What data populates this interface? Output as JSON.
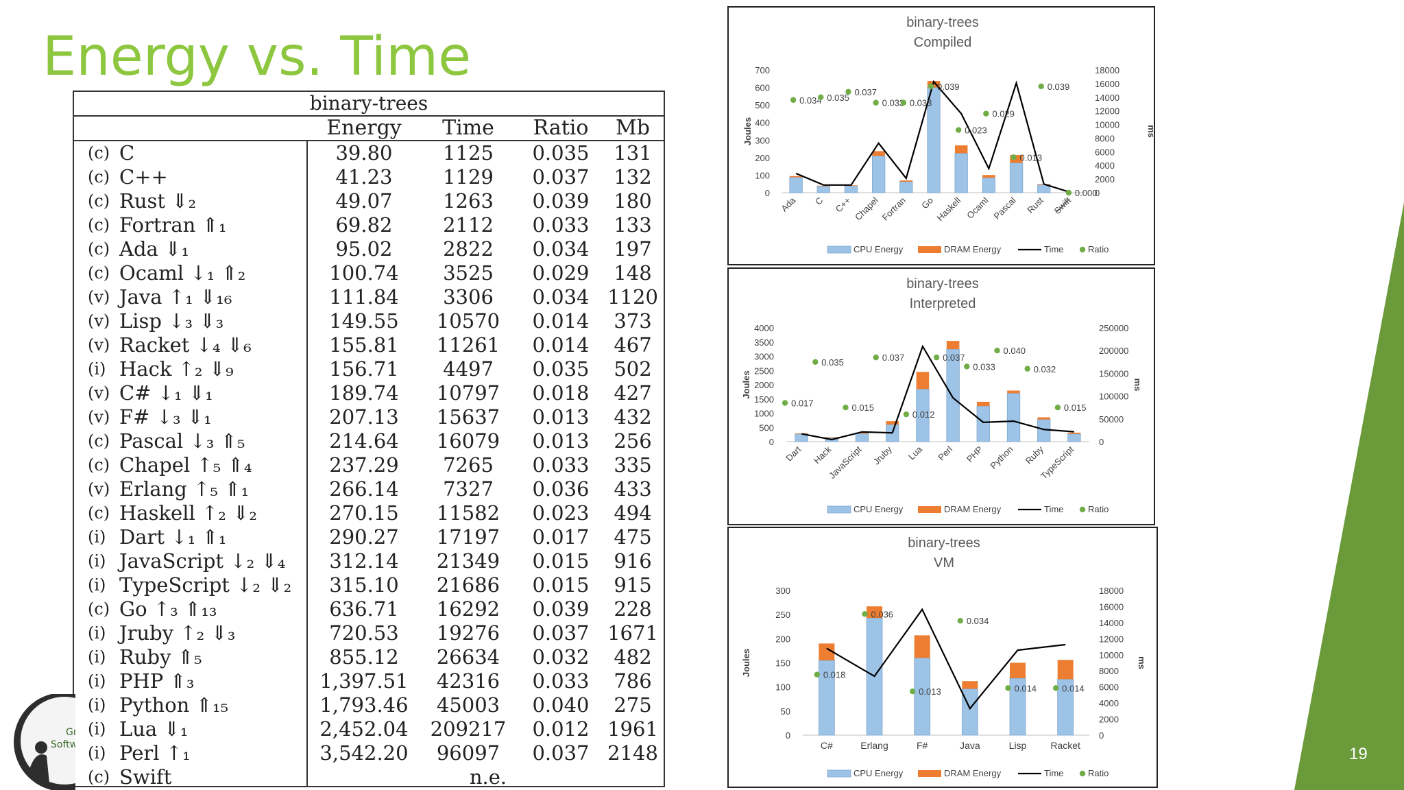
{
  "slide": {
    "title": "Energy vs. Time",
    "page_number": "19",
    "accent_color": "#8dc63f"
  },
  "table": {
    "title": "binary-trees",
    "headers": {
      "energy": "Energy",
      "time": "Time",
      "ratio": "Ratio",
      "mb": "Mb"
    },
    "rows": [
      {
        "type": "(c)",
        "name": "C",
        "energy": "39.80",
        "time": "1125",
        "ratio": "0.035",
        "mb": "131"
      },
      {
        "type": "(c)",
        "name": "C++",
        "energy": "41.23",
        "time": "1129",
        "ratio": "0.037",
        "mb": "132"
      },
      {
        "type": "(c)",
        "name": "Rust ⇓₂",
        "energy": "49.07",
        "time": "1263",
        "ratio": "0.039",
        "mb": "180"
      },
      {
        "type": "(c)",
        "name": "Fortran ⇑₁",
        "energy": "69.82",
        "time": "2112",
        "ratio": "0.033",
        "mb": "133"
      },
      {
        "type": "(c)",
        "name": "Ada ⇓₁",
        "energy": "95.02",
        "time": "2822",
        "ratio": "0.034",
        "mb": "197"
      },
      {
        "type": "(c)",
        "name": "Ocaml ↓₁  ⇑₂",
        "energy": "100.74",
        "time": "3525",
        "ratio": "0.029",
        "mb": "148"
      },
      {
        "type": "(v)",
        "name": "Java ↑₁  ⇓₁₆",
        "energy": "111.84",
        "time": "3306",
        "ratio": "0.034",
        "mb": "1120"
      },
      {
        "type": "(v)",
        "name": "Lisp ↓₃  ⇓₃",
        "energy": "149.55",
        "time": "10570",
        "ratio": "0.014",
        "mb": "373"
      },
      {
        "type": "(v)",
        "name": "Racket ↓₄  ⇓₆",
        "energy": "155.81",
        "time": "11261",
        "ratio": "0.014",
        "mb": "467"
      },
      {
        "type": "(i)",
        "name": "Hack ↑₂  ⇓₉",
        "energy": "156.71",
        "time": "4497",
        "ratio": "0.035",
        "mb": "502"
      },
      {
        "type": "(v)",
        "name": "C# ↓₁  ⇓₁",
        "energy": "189.74",
        "time": "10797",
        "ratio": "0.018",
        "mb": "427"
      },
      {
        "type": "(v)",
        "name": "F# ↓₃  ⇓₁",
        "energy": "207.13",
        "time": "15637",
        "ratio": "0.013",
        "mb": "432"
      },
      {
        "type": "(c)",
        "name": "Pascal ↓₃  ⇑₅",
        "energy": "214.64",
        "time": "16079",
        "ratio": "0.013",
        "mb": "256"
      },
      {
        "type": "(c)",
        "name": "Chapel ↑₅  ⇑₄",
        "energy": "237.29",
        "time": "7265",
        "ratio": "0.033",
        "mb": "335"
      },
      {
        "type": "(v)",
        "name": "Erlang ↑₅  ⇑₁",
        "energy": "266.14",
        "time": "7327",
        "ratio": "0.036",
        "mb": "433"
      },
      {
        "type": "(c)",
        "name": "Haskell ↑₂  ⇓₂",
        "energy": "270.15",
        "time": "11582",
        "ratio": "0.023",
        "mb": "494"
      },
      {
        "type": "(i)",
        "name": "Dart ↓₁  ⇑₁",
        "energy": "290.27",
        "time": "17197",
        "ratio": "0.017",
        "mb": "475"
      },
      {
        "type": "(i)",
        "name": "JavaScript ↓₂  ⇓₄",
        "energy": "312.14",
        "time": "21349",
        "ratio": "0.015",
        "mb": "916"
      },
      {
        "type": "(i)",
        "name": "TypeScript ↓₂  ⇓₂",
        "energy": "315.10",
        "time": "21686",
        "ratio": "0.015",
        "mb": "915"
      },
      {
        "type": "(c)",
        "name": "Go ↑₃  ⇑₁₃",
        "energy": "636.71",
        "time": "16292",
        "ratio": "0.039",
        "mb": "228"
      },
      {
        "type": "(i)",
        "name": "Jruby ↑₂  ⇓₃",
        "energy": "720.53",
        "time": "19276",
        "ratio": "0.037",
        "mb": "1671"
      },
      {
        "type": "(i)",
        "name": "Ruby ⇑₅",
        "energy": "855.12",
        "time": "26634",
        "ratio": "0.032",
        "mb": "482"
      },
      {
        "type": "(i)",
        "name": "PHP ⇑₃",
        "energy": "1,397.51",
        "time": "42316",
        "ratio": "0.033",
        "mb": "786"
      },
      {
        "type": "(i)",
        "name": "Python ⇑₁₅",
        "energy": "1,793.46",
        "time": "45003",
        "ratio": "0.040",
        "mb": "275"
      },
      {
        "type": "(i)",
        "name": "Lua ⇓₁",
        "energy": "2,452.04",
        "time": "209217",
        "ratio": "0.012",
        "mb": "1961"
      },
      {
        "type": "(i)",
        "name": "Perl ↑₁",
        "energy": "3,542.20",
        "time": "96097",
        "ratio": "0.037",
        "mb": "2148"
      },
      {
        "type": "(c)",
        "name": "Swift",
        "na": "n.e."
      }
    ]
  },
  "colors": {
    "cpu": "#9dc3e6",
    "dram": "#ed7d31",
    "time": "#000000",
    "ratio": "#70ad47"
  },
  "chart_data": [
    {
      "type": "bar",
      "title": "binary-trees",
      "subtitle": "Compiled",
      "ylabel": "Joules",
      "y2label": "ms",
      "ylim": [
        0,
        700
      ],
      "yticks": [
        0,
        100,
        200,
        300,
        400,
        500,
        600,
        700
      ],
      "y2lim": [
        0,
        18000
      ],
      "y2ticks": [
        0,
        2000,
        4000,
        6000,
        8000,
        10000,
        12000,
        14000,
        16000,
        18000
      ],
      "categories": [
        "Ada",
        "C",
        "C++",
        "Chapel",
        "Fortran",
        "Go",
        "Haskell",
        "Ocaml",
        "Pascal",
        "Rust",
        "Swift"
      ],
      "struck_categories": [
        "Swift"
      ],
      "series": [
        {
          "name": "CPU Energy",
          "values": [
            88,
            37,
            39,
            210,
            63,
            600,
            225,
            85,
            170,
            45,
            0
          ]
        },
        {
          "name": "DRAM Energy",
          "values": [
            7,
            3,
            3,
            27,
            7,
            37,
            45,
            16,
            45,
            4,
            0
          ]
        },
        {
          "name": "Time",
          "values": [
            2822,
            1125,
            1129,
            7265,
            2112,
            16292,
            11582,
            3525,
            16079,
            1263,
            0
          ]
        },
        {
          "name": "Ratio",
          "values": [
            0.034,
            0.035,
            0.037,
            0.033,
            0.033,
            0.039,
            0.023,
            0.029,
            0.013,
            0.039,
            0.0
          ]
        }
      ],
      "ratio_labels": [
        "0.034",
        "0.035",
        "0.037",
        "0.033",
        "0.033",
        "0.039",
        "0.023",
        "0.029",
        "0.013",
        "0.039",
        "0.000"
      ],
      "legend": [
        "CPU Energy",
        "DRAM Energy",
        "Time",
        "Ratio"
      ],
      "legend_position": "bottom"
    },
    {
      "type": "bar",
      "title": "binary-trees",
      "subtitle": "Interpreted",
      "ylabel": "Joules",
      "y2label": "ms",
      "ylim": [
        0,
        4000
      ],
      "yticks": [
        0,
        500,
        1000,
        1500,
        2000,
        2500,
        3000,
        3500,
        4000
      ],
      "y2lim": [
        0,
        250000
      ],
      "y2ticks": [
        0,
        50000,
        100000,
        150000,
        200000,
        250000
      ],
      "categories": [
        "Dart",
        "Hack",
        "JavaScript",
        "Jruby",
        "Lua",
        "Perl",
        "PHP",
        "Python",
        "Ruby",
        "TypeScript"
      ],
      "series": [
        {
          "name": "CPU Energy",
          "values": [
            270,
            140,
            280,
            600,
            1850,
            3250,
            1250,
            1700,
            780,
            270
          ]
        },
        {
          "name": "DRAM Energy",
          "values": [
            20,
            17,
            32,
            120,
            600,
            290,
            150,
            95,
            75,
            45
          ]
        },
        {
          "name": "Time",
          "values": [
            17197,
            4497,
            21349,
            19276,
            209217,
            96097,
            42316,
            45003,
            26634,
            21686
          ]
        },
        {
          "name": "Ratio",
          "values": [
            0.017,
            0.035,
            0.015,
            0.037,
            0.012,
            0.037,
            0.033,
            0.04,
            0.032,
            0.015
          ]
        }
      ],
      "ratio_labels": [
        "0.017",
        "0.035",
        "0.015",
        "0.037",
        "0.012",
        "0.037",
        "0.033",
        "0.040",
        "0.032",
        "0.015"
      ],
      "legend": [
        "CPU Energy",
        "DRAM Energy",
        "Time",
        "Ratio"
      ],
      "legend_position": "bottom"
    },
    {
      "type": "bar",
      "title": "binary-trees",
      "subtitle": "VM",
      "ylabel": "Joules",
      "y2label": "ms",
      "ylim": [
        0,
        300
      ],
      "yticks": [
        0,
        50,
        100,
        150,
        200,
        250,
        300
      ],
      "y2lim": [
        0,
        18000
      ],
      "y2ticks": [
        0,
        2000,
        4000,
        6000,
        8000,
        10000,
        12000,
        14000,
        16000,
        18000
      ],
      "categories": [
        "C#",
        "Erlang",
        "F#",
        "Java",
        "Lisp",
        "Racket"
      ],
      "series": [
        {
          "name": "CPU Energy",
          "values": [
            155,
            243,
            160,
            96,
            118,
            116
          ]
        },
        {
          "name": "DRAM Energy",
          "values": [
            35,
            24,
            47,
            16,
            32,
            40
          ]
        },
        {
          "name": "Time",
          "values": [
            10797,
            7327,
            15637,
            3306,
            10570,
            11261
          ]
        },
        {
          "name": "Ratio",
          "values": [
            0.018,
            0.036,
            0.013,
            0.034,
            0.014,
            0.014
          ]
        }
      ],
      "ratio_labels": [
        "0.018",
        "0.036",
        "0.013",
        "0.034",
        "0.014",
        "0.014"
      ],
      "legend": [
        "CPU Energy",
        "DRAM Energy",
        "Time",
        "Ratio"
      ],
      "legend_position": "bottom"
    }
  ]
}
